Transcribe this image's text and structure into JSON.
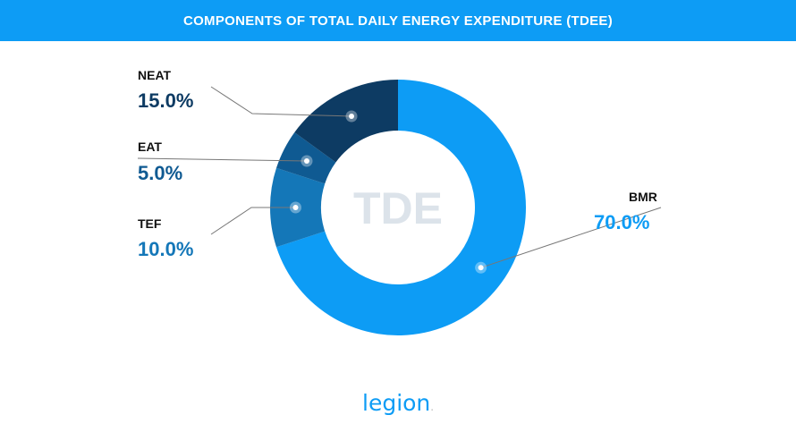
{
  "header": {
    "title": "COMPONENTS OF TOTAL DAILY ENERGY EXPENDITURE (TDEE)"
  },
  "center_label": "TDE",
  "logo": {
    "text": "legion",
    "dot": "."
  },
  "colors": {
    "header": "#0d9cf5",
    "bmr": "#0d9cf5",
    "tef": "#1477b8",
    "eat": "#0f5a92",
    "neat": "#0d3b63",
    "center_text": "#dce3ea",
    "leader": "#777777"
  },
  "chart_data": {
    "type": "donut",
    "title": "COMPONENTS OF TOTAL DAILY ENERGY EXPENDITURE (TDEE)",
    "center_label": "TDE",
    "slices": [
      {
        "label": "BMR",
        "value": 70.0,
        "display": "70.0%",
        "color": "#0d9cf5"
      },
      {
        "label": "TEF",
        "value": 10.0,
        "display": "10.0%",
        "color": "#1477b8"
      },
      {
        "label": "EAT",
        "value": 5.0,
        "display": "5.0%",
        "color": "#0f5a92"
      },
      {
        "label": "NEAT",
        "value": 15.0,
        "display": "15.0%",
        "color": "#0d3b63"
      }
    ]
  }
}
